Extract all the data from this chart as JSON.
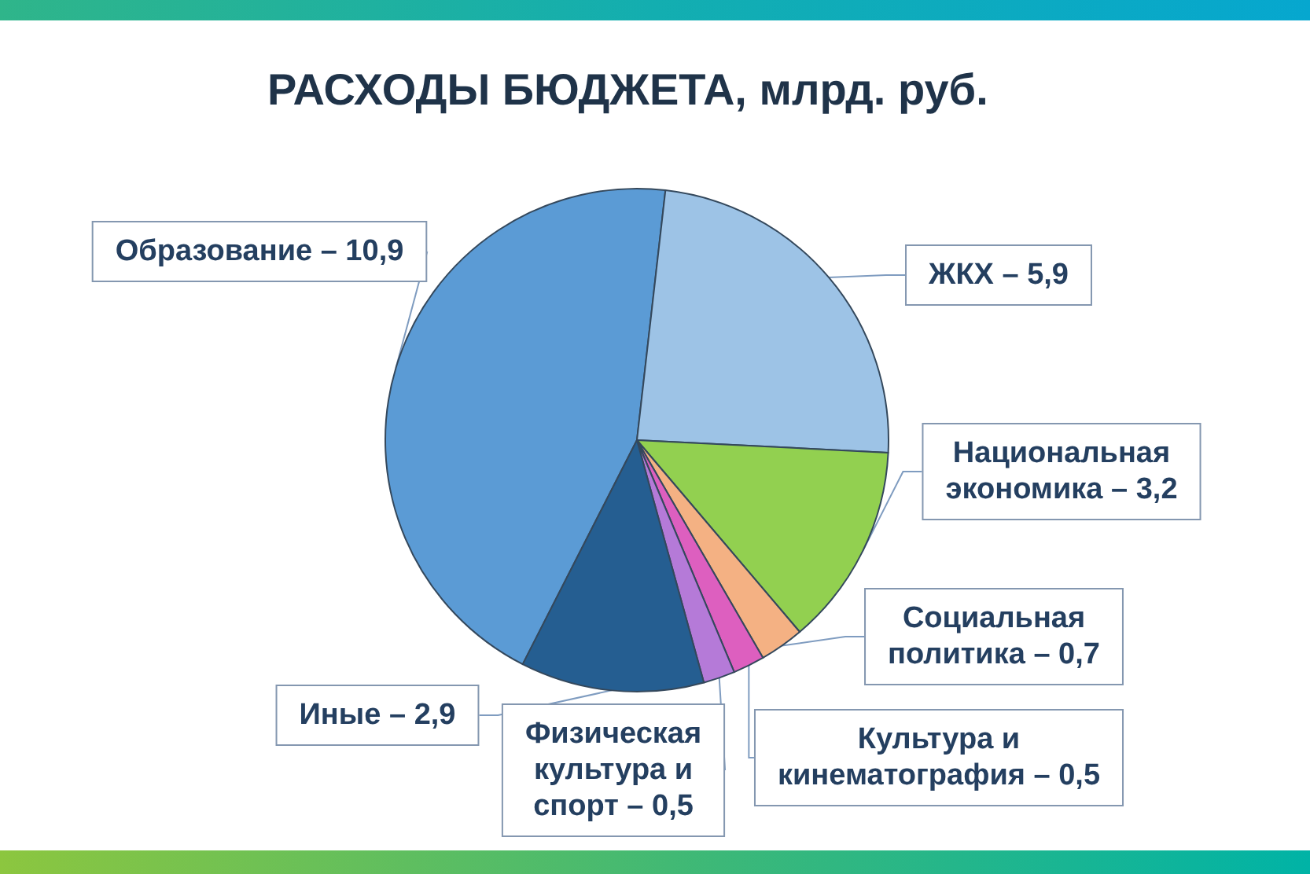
{
  "chart_data": {
    "type": "pie",
    "title": "РАСХОДЫ БЮДЖЕТА, млрд. руб.",
    "categories": [
      "Образование",
      "ЖКХ",
      "Национальная экономика",
      "Социальная политика",
      "Культура и кинематография",
      "Физическая культура и спорт",
      "Иные"
    ],
    "values": [
      10.9,
      5.9,
      3.2,
      0.7,
      0.5,
      0.5,
      2.9
    ],
    "value_labels": [
      "10,9",
      "5,9",
      "3,2",
      "0,7",
      "0,5",
      "0,5",
      "2,9"
    ],
    "colors": [
      "#5b9bd5",
      "#9dc3e6",
      "#92d050",
      "#f4b183",
      "#dd5fbf",
      "#b57ad8",
      "#255e91"
    ],
    "legend": false
  }
}
